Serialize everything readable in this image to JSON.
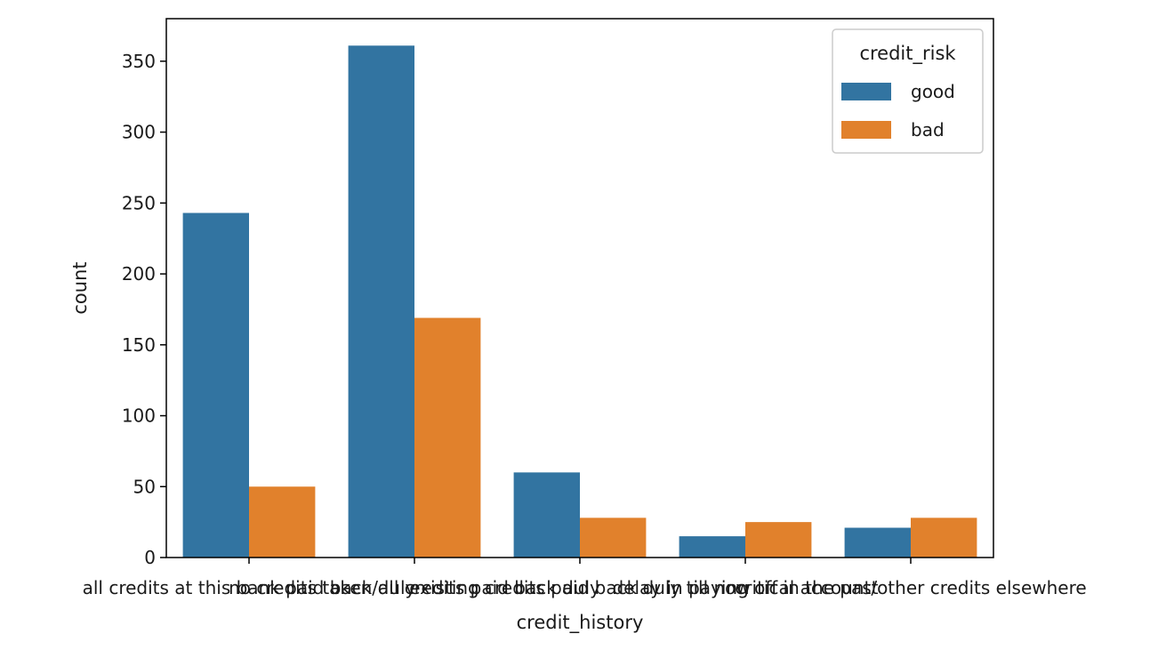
{
  "chart_data": {
    "type": "bar",
    "xlabel": "credit_history",
    "ylabel": "count",
    "ylim": [
      0,
      380
    ],
    "yticks": [
      0,
      50,
      100,
      150,
      200,
      250,
      300,
      350
    ],
    "categories": [
      "all credits at this bank paid back duly",
      "no credits taken/all credits paid back duly",
      "existing credits paid back duly till now",
      "delay in paying off in the past",
      "critical account/other credits elsewhere"
    ],
    "series": [
      {
        "name": "good",
        "color": "#3274a1",
        "values": [
          243,
          361,
          60,
          15,
          21
        ]
      },
      {
        "name": "bad",
        "color": "#e1812c",
        "values": [
          50,
          169,
          28,
          25,
          28
        ]
      }
    ],
    "legend": {
      "title": "credit_risk",
      "placement": "top-right"
    },
    "grid": false
  }
}
